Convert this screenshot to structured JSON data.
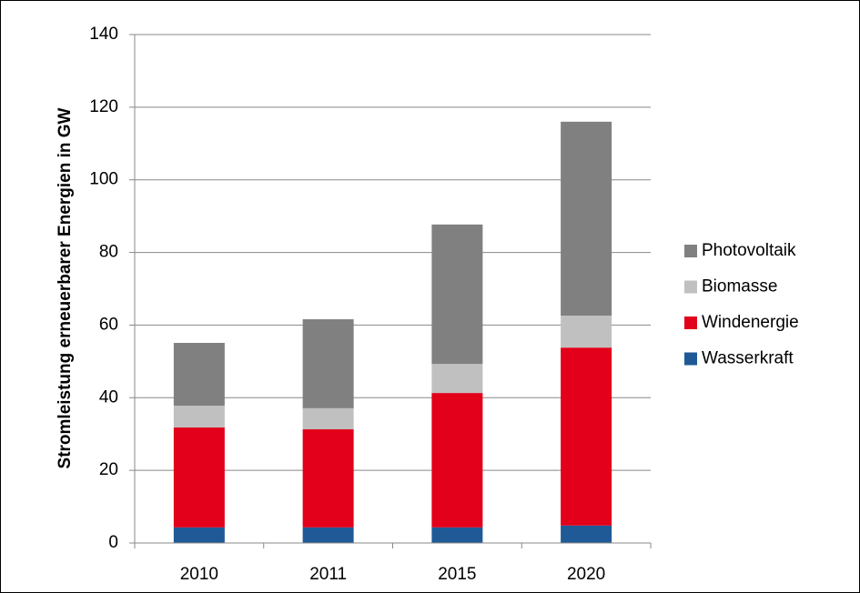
{
  "chart_data": {
    "type": "stacked-bar",
    "y_label": "Stromleistung erneuerbarer  Energien in GW",
    "categories": [
      "2010",
      "2011",
      "2015",
      "2020"
    ],
    "series": [
      {
        "name": "Wasserkraft",
        "color": "#1f5a96",
        "values": [
          4.3,
          4.3,
          4.3,
          4.8
        ]
      },
      {
        "name": "Windenergie",
        "color": "#e2001a",
        "values": [
          27.5,
          27.0,
          37.0,
          49.0
        ]
      },
      {
        "name": "Biomasse",
        "color": "#c0c0c0",
        "values": [
          6.0,
          5.8,
          8.0,
          8.8
        ]
      },
      {
        "name": "Photovoltaik",
        "color": "#808080",
        "values": [
          17.3,
          24.5,
          38.4,
          53.4
        ]
      }
    ],
    "ylim": [
      0,
      140
    ],
    "yticks": [
      0,
      20,
      40,
      60,
      80,
      100,
      120,
      140
    ],
    "grid": true,
    "legend": "right"
  }
}
